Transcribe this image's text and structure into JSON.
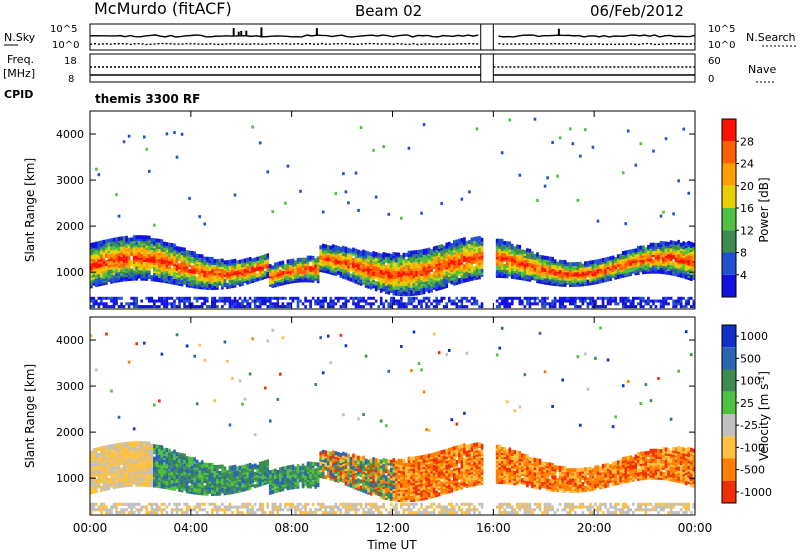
{
  "header": {
    "station": "McMurdo (fitACF)",
    "beam": "Beam 02",
    "date": "06/Feb/2012"
  },
  "params": {
    "nsky_label": "N.Sky",
    "nsearch_label": "N.Search",
    "freq_label": "Freq.",
    "freq_unit": "[MHz]",
    "nave_label": "Nave",
    "cpid_label": "CPID",
    "cpid_value": "themis 3300 RF",
    "noise_ticks": [
      "10^5",
      "10^0"
    ],
    "freq_ticks": [
      "18",
      "8"
    ],
    "nave_ticks": [
      "60",
      "0"
    ]
  },
  "chart_data": [
    {
      "type": "heatmap",
      "name": "power",
      "ylabel": "Slant Range [km]",
      "y_ticks": [
        "1000",
        "2000",
        "3000",
        "4000"
      ],
      "ylim": [
        200,
        4500
      ],
      "colorbar_label": "Power [dB]",
      "colorbar_ticks": [
        "4",
        "8",
        "12",
        "16",
        "20",
        "24",
        "28"
      ],
      "colors": [
        "#1010e0",
        "#2050d0",
        "#3c8c50",
        "#50c040",
        "#e8d000",
        "#ffa000",
        "#ff6000",
        "#ff1000"
      ],
      "data_gap_hours": [
        15.5,
        16.0
      ]
    },
    {
      "type": "heatmap",
      "name": "velocity",
      "ylabel": "Slant Range [km]",
      "y_ticks": [
        "1000",
        "2000",
        "3000",
        "4000"
      ],
      "ylim": [
        200,
        4500
      ],
      "colorbar_label": "Velocity [m s^-1]",
      "colorbar_ticks": [
        "1000",
        "500",
        "100",
        "25",
        "-25",
        "-100",
        "-500",
        "-1000"
      ],
      "colors": [
        "#1030c8",
        "#2a64b4",
        "#3c8c50",
        "#50c040",
        "#c0c0c0",
        "#ffc040",
        "#ff8000",
        "#f03000"
      ],
      "data_gap_hours": [
        15.5,
        16.0
      ]
    }
  ],
  "time_axis": {
    "label": "Time UT",
    "ticks": [
      "00:00",
      "04:00",
      "08:00",
      "12:00",
      "16:00",
      "20:00",
      "00:00"
    ]
  }
}
